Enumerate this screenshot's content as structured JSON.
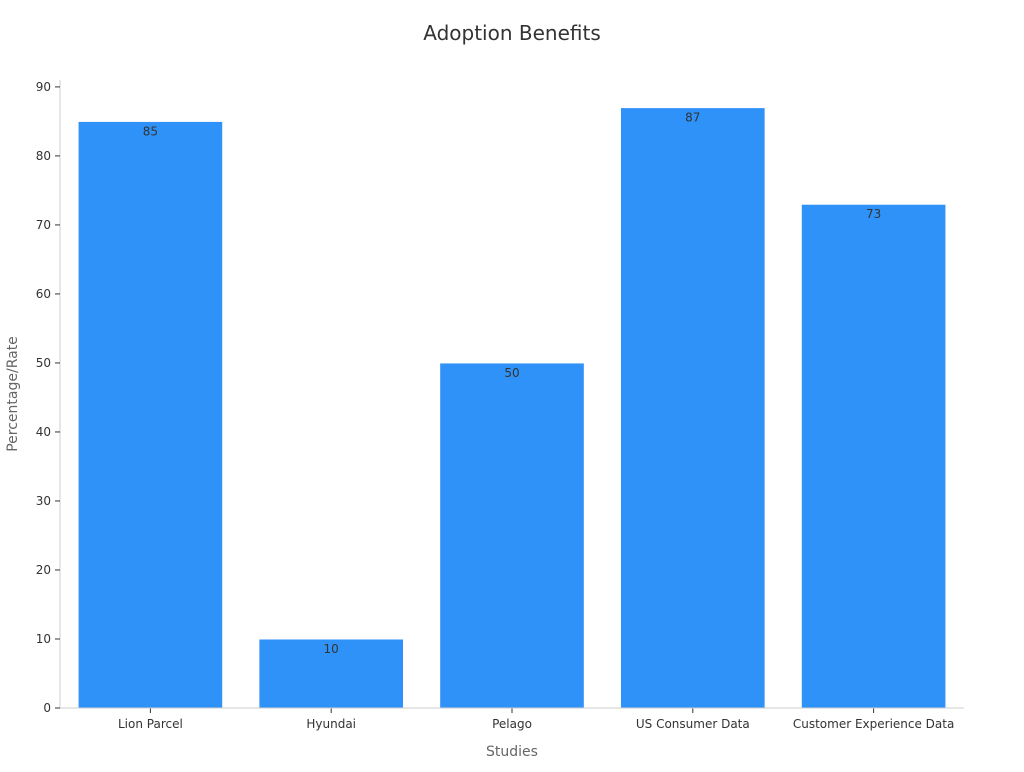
{
  "chart_data": {
    "type": "bar",
    "title": "Adoption Benefits",
    "xlabel": "Studies",
    "ylabel": "Percentage/Rate",
    "categories": [
      "Lion Parcel",
      "Hyundai",
      "Pelago",
      "US Consumer Data",
      "Customer Experience Data"
    ],
    "values": [
      85,
      10,
      50,
      87,
      73
    ],
    "ylim": [
      0,
      91
    ],
    "yticks": [
      0,
      10,
      20,
      30,
      40,
      50,
      60,
      70,
      80,
      90
    ],
    "grid": false,
    "legend": "none",
    "colors": {
      "bar": "#2f92f8",
      "bar_edge": "#ffffff"
    }
  }
}
